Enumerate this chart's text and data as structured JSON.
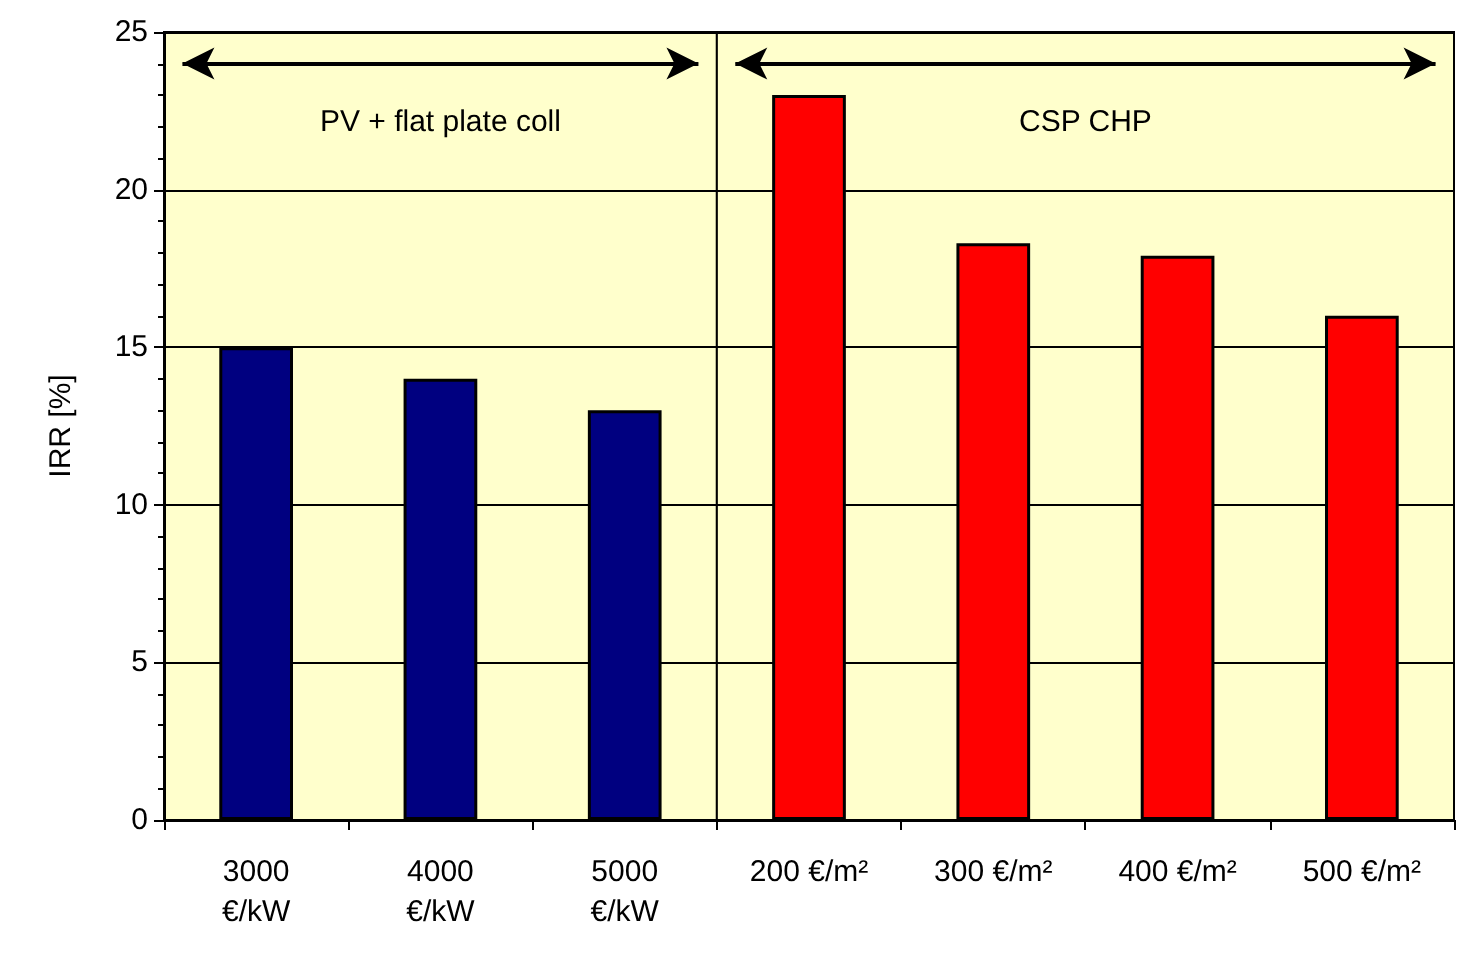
{
  "chart_data": {
    "type": "bar",
    "ylabel": "IRR [%]",
    "categories": [
      "3000\n€/kW",
      "4000\n€/kW",
      "5000\n€/kW",
      "200 €/m²",
      "300 €/m²",
      "400 €/m²",
      "500 €/m²"
    ],
    "values": [
      15,
      14,
      13,
      23,
      18.3,
      17.9,
      16.0
    ],
    "colors": [
      "#000080",
      "#000080",
      "#000080",
      "#ff0000",
      "#ff0000",
      "#ff0000",
      "#ff0000"
    ],
    "ylim": [
      0,
      25
    ],
    "yticks": [
      0,
      5,
      10,
      15,
      20,
      25
    ],
    "grid": "y",
    "bands": [
      {
        "axis": "x",
        "from": "3000\n€/kW",
        "to": "5000\n€/kW",
        "label": "PV + flat plate coll",
        "color": "#ffffcc"
      },
      {
        "axis": "x",
        "from": "200 €/m²",
        "to": "500 €/m²",
        "label": "CSP CHP",
        "color": "#ffffcc"
      }
    ]
  }
}
